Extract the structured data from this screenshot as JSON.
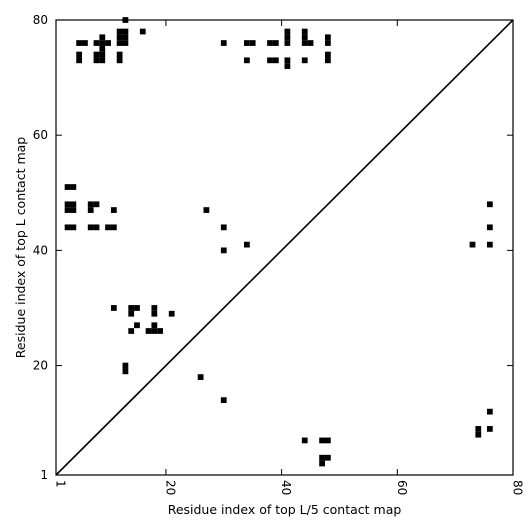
{
  "chart_data": {
    "type": "heatmap",
    "title": "",
    "xlabel": "Residue index of top L/5 contact map",
    "ylabel": "Residue index of top L contact map",
    "xlim": [
      1,
      80
    ],
    "ylim": [
      1,
      80
    ],
    "xticks": [
      1,
      20,
      40,
      60,
      80
    ],
    "yticks": [
      1,
      20,
      40,
      60,
      80
    ],
    "grid": false,
    "diagonal_line": true,
    "cell_color": "#000000",
    "upper_contacts": [
      [
        13,
        80
      ],
      [
        12,
        78
      ],
      [
        13,
        78
      ],
      [
        16,
        78
      ],
      [
        12,
        77
      ],
      [
        13,
        77
      ],
      [
        5,
        76
      ],
      [
        6,
        76
      ],
      [
        8,
        76
      ],
      [
        9,
        76
      ],
      [
        10,
        76
      ],
      [
        12,
        76
      ],
      [
        13,
        76
      ],
      [
        9,
        77
      ],
      [
        9,
        75
      ],
      [
        5,
        74
      ],
      [
        8,
        74
      ],
      [
        9,
        74
      ],
      [
        12,
        74
      ],
      [
        5,
        73
      ],
      [
        8,
        73
      ],
      [
        9,
        73
      ],
      [
        12,
        73
      ],
      [
        30,
        76
      ],
      [
        34,
        76
      ],
      [
        35,
        76
      ],
      [
        38,
        76
      ],
      [
        39,
        76
      ],
      [
        34,
        73
      ],
      [
        38,
        73
      ],
      [
        39,
        73
      ],
      [
        41,
        78
      ],
      [
        41,
        77
      ],
      [
        41,
        76
      ],
      [
        41,
        72
      ],
      [
        41,
        73
      ],
      [
        44,
        78
      ],
      [
        44,
        77
      ],
      [
        44,
        76
      ],
      [
        45,
        76
      ],
      [
        44,
        73
      ],
      [
        48,
        77
      ],
      [
        48,
        76
      ],
      [
        48,
        74
      ],
      [
        48,
        73
      ],
      [
        3,
        51
      ],
      [
        4,
        51
      ],
      [
        3,
        48
      ],
      [
        4,
        48
      ],
      [
        3,
        47
      ],
      [
        4,
        47
      ],
      [
        7,
        48
      ],
      [
        8,
        48
      ],
      [
        7,
        47
      ],
      [
        11,
        47
      ],
      [
        3,
        44
      ],
      [
        4,
        44
      ],
      [
        7,
        44
      ],
      [
        8,
        44
      ],
      [
        10,
        44
      ],
      [
        11,
        44
      ],
      [
        27,
        47
      ],
      [
        30,
        44
      ],
      [
        34,
        41
      ],
      [
        30,
        40
      ],
      [
        11,
        30
      ],
      [
        14,
        30
      ],
      [
        15,
        30
      ],
      [
        14,
        29
      ],
      [
        18,
        30
      ],
      [
        18,
        29
      ],
      [
        21,
        29
      ],
      [
        15,
        27
      ],
      [
        18,
        27
      ],
      [
        14,
        26
      ],
      [
        17,
        26
      ],
      [
        18,
        26
      ],
      [
        19,
        26
      ],
      [
        13,
        20
      ],
      [
        13,
        19
      ],
      [
        26,
        18
      ],
      [
        30,
        14
      ]
    ],
    "lower_contacts": [
      [
        76,
        48
      ],
      [
        76,
        44
      ],
      [
        76,
        41
      ],
      [
        73,
        41
      ],
      [
        76,
        12
      ],
      [
        74,
        9
      ],
      [
        74,
        8
      ],
      [
        76,
        9
      ],
      [
        44,
        7
      ],
      [
        47,
        7
      ],
      [
        48,
        7
      ],
      [
        47,
        4
      ],
      [
        48,
        4
      ],
      [
        47,
        3
      ]
    ]
  }
}
